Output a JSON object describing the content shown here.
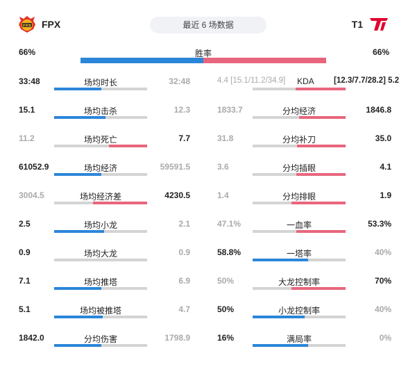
{
  "header": {
    "left_team": "FPX",
    "right_team": "T1",
    "period": "最近 6 场数据",
    "left_logo_icon": "fpx-logo-icon",
    "right_logo_icon": "t1-logo-icon"
  },
  "win_rate": {
    "label": "胜率",
    "left": "66%",
    "right": "66%",
    "left_fraction": 0.5
  },
  "colors": {
    "left_team": "#2b86d9",
    "right_team": "#e8667d",
    "neutral_bar": "#d4d4d4"
  },
  "left_stats": [
    {
      "label": "场均时长",
      "left": "33:48",
      "right": "32:48",
      "winner": "left",
      "left_fraction": 0.51
    },
    {
      "label": "场均击杀",
      "left": "15.1",
      "right": "12.3",
      "winner": "left",
      "left_fraction": 0.55
    },
    {
      "label": "场均死亡",
      "left": "11.2",
      "right": "7.7",
      "winner": "right",
      "left_fraction": 0.59
    },
    {
      "label": "场均经济",
      "left": "61052.9",
      "right": "59591.5",
      "winner": "left",
      "left_fraction": 0.51
    },
    {
      "label": "场均经济差",
      "left": "3004.5",
      "right": "4230.5",
      "winner": "right",
      "left_fraction": 0.42
    },
    {
      "label": "场均小龙",
      "left": "2.5",
      "right": "2.1",
      "winner": "left",
      "left_fraction": 0.54
    },
    {
      "label": "场均大龙",
      "left": "0.9",
      "right": "0.9",
      "winner": "none",
      "left_fraction": 0.5
    },
    {
      "label": "场均推塔",
      "left": "7.1",
      "right": "6.9",
      "winner": "left",
      "left_fraction": 0.51
    },
    {
      "label": "场均被推塔",
      "left": "5.1",
      "right": "4.7",
      "winner": "left",
      "left_fraction": 0.52
    },
    {
      "label": "分均伤害",
      "left": "1842.0",
      "right": "1798.9",
      "winner": "left",
      "left_fraction": 0.51
    }
  ],
  "right_stats": [
    {
      "label": "KDA",
      "left": "4.4 [15.1/11.2/34.9]",
      "right": "[12.3/7.7/28.2] 5.2",
      "winner": "right",
      "left_fraction": 0.46,
      "kda": true
    },
    {
      "label": "分均经济",
      "left": "1833.7",
      "right": "1846.8",
      "winner": "right",
      "left_fraction": 0.5
    },
    {
      "label": "分均补刀",
      "left": "31.8",
      "right": "35.0",
      "winner": "right",
      "left_fraction": 0.48
    },
    {
      "label": "分均插眼",
      "left": "3.6",
      "right": "4.1",
      "winner": "right",
      "left_fraction": 0.47
    },
    {
      "label": "分均排眼",
      "left": "1.4",
      "right": "1.9",
      "winner": "right",
      "left_fraction": 0.42
    },
    {
      "label": "一血率",
      "left": "47.1%",
      "right": "53.3%",
      "winner": "right",
      "left_fraction": 0.47
    },
    {
      "label": "一塔率",
      "left": "58.8%",
      "right": "40%",
      "winner": "left",
      "left_fraction": 0.6
    },
    {
      "label": "大龙控制率",
      "left": "50%",
      "right": "70%",
      "winner": "right",
      "left_fraction": 0.42
    },
    {
      "label": "小龙控制率",
      "left": "50%",
      "right": "40%",
      "winner": "left",
      "left_fraction": 0.56
    },
    {
      "label": "满局率",
      "left": "16%",
      "right": "0%",
      "winner": "left",
      "left_fraction": 0.6
    }
  ]
}
